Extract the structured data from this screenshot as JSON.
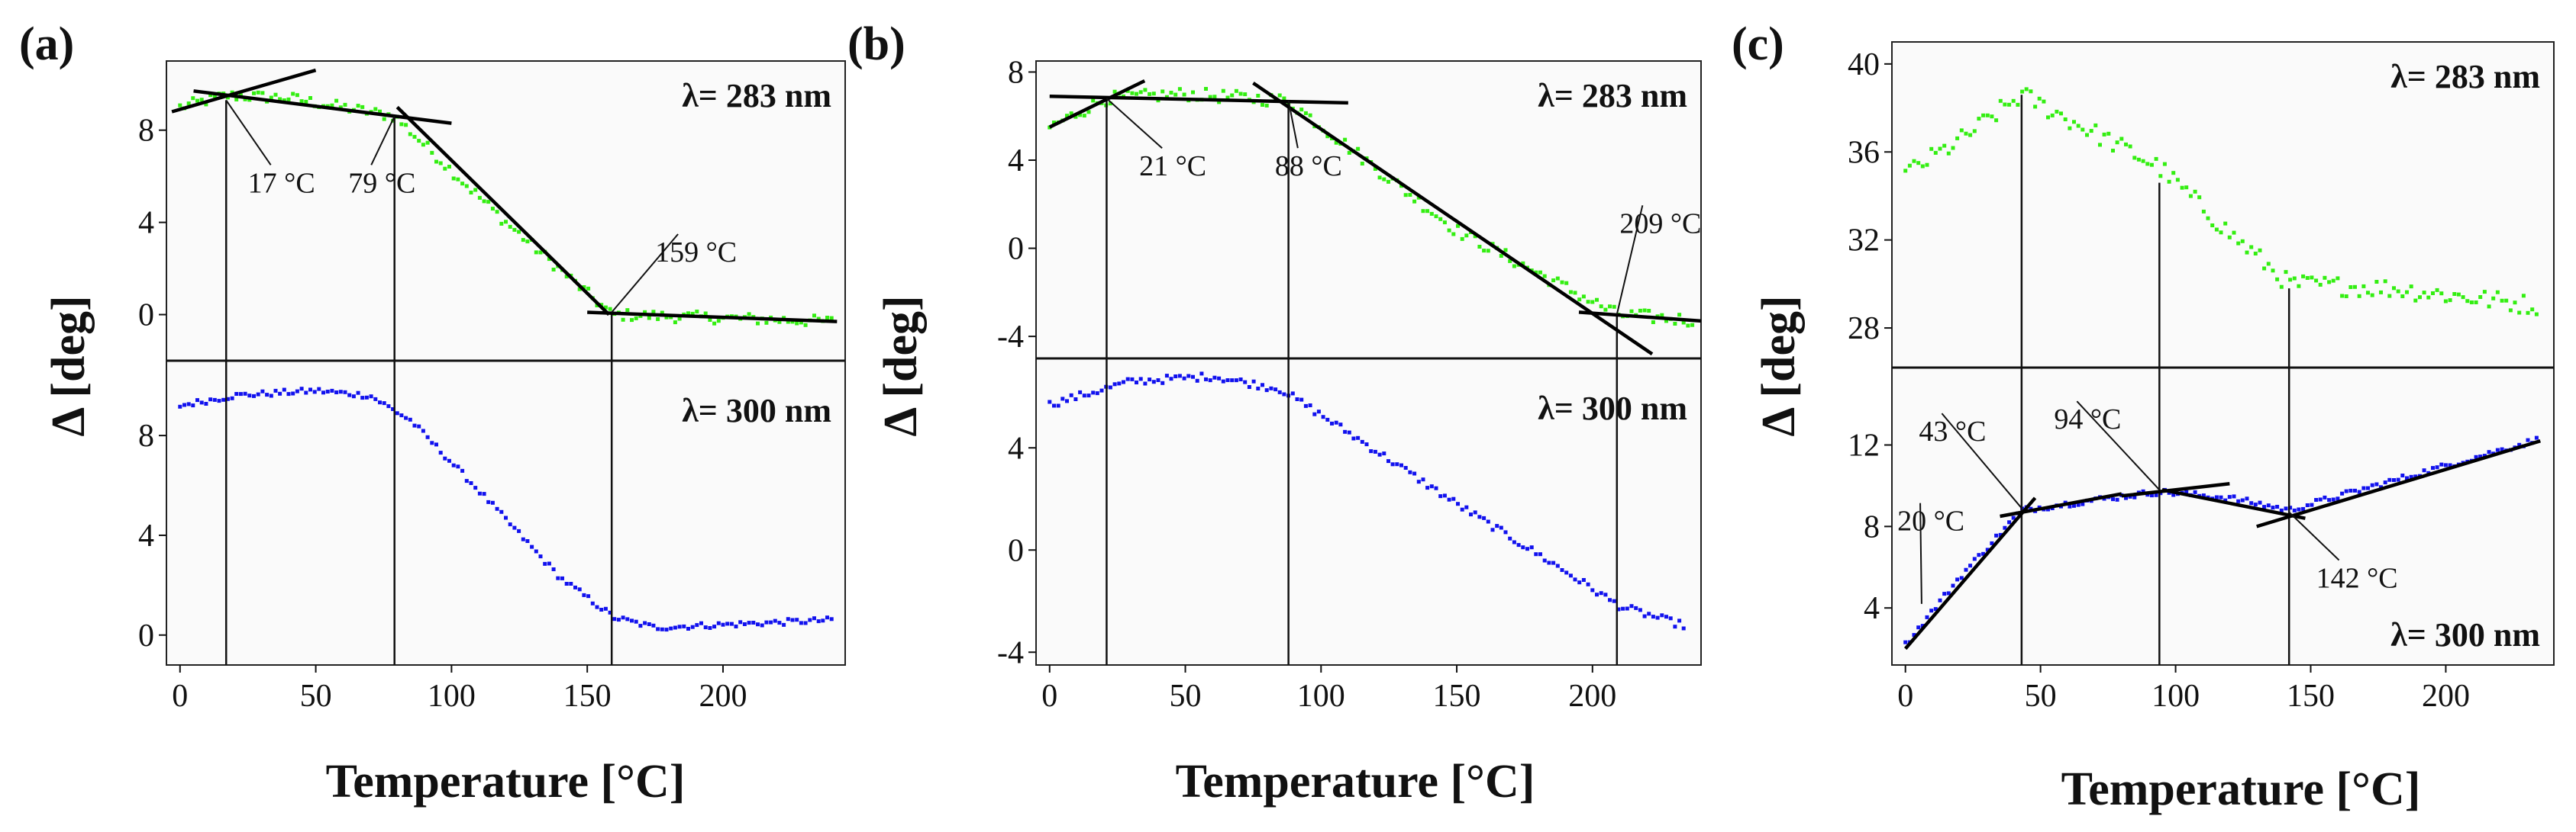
{
  "figure": {
    "panel_labels": [
      "(a)",
      "(b)",
      "(c)"
    ],
    "xlabel": "Temperature [°C]",
    "ylabel": "Δ [deg]",
    "colors": {
      "top": "#33ee11",
      "bottom": "#1111ee",
      "line": "#000000"
    }
  },
  "chart_data": [
    {
      "type": "scatter",
      "panel": "(a)",
      "xlabel": "Temperature [°C]",
      "ylabel": "Δ [deg]",
      "xlim": [
        -5,
        245
      ],
      "xticks": [
        0,
        50,
        100,
        150,
        200
      ],
      "top": {
        "wavelength_label": "λ= 283 nm",
        "ylim": [
          -2,
          11
        ],
        "yticks": [
          0,
          4,
          8
        ],
        "series_color": "green",
        "keypoints": [
          [
            0,
            9.0
          ],
          [
            17,
            9.5
          ],
          [
            40,
            9.4
          ],
          [
            79,
            8.6
          ],
          [
            120,
            4.0
          ],
          [
            159,
            0.0
          ],
          [
            240,
            -0.3
          ]
        ],
        "noise": 0.25,
        "fit_lines": [
          [
            [
              -3,
              8.8
            ],
            [
              50,
              10.6
            ]
          ],
          [
            [
              5,
              9.7
            ],
            [
              100,
              8.3
            ]
          ],
          [
            [
              80,
              9.0
            ],
            [
              158,
              0.0
            ]
          ],
          [
            [
              150,
              0.1
            ],
            [
              242,
              -0.3
            ]
          ]
        ],
        "annotations": [
          {
            "text": "17 °C",
            "tx": 17,
            "ty": 9.3,
            "lx": 25,
            "ly": 5.3
          },
          {
            "text": "79 °C",
            "tx": 79,
            "ty": 8.6,
            "lx": 62,
            "ly": 5.3
          },
          {
            "text": "159 °C",
            "tx": 159,
            "ty": 0.1,
            "lx": 175,
            "ly": 2.3
          }
        ]
      },
      "bottom": {
        "wavelength_label": "λ= 300 nm",
        "ylim": [
          -1.2,
          11
        ],
        "yticks": [
          0,
          4,
          8
        ],
        "series_color": "blue",
        "keypoints": [
          [
            0,
            9.2
          ],
          [
            20,
            9.6
          ],
          [
            50,
            9.8
          ],
          [
            70,
            9.6
          ],
          [
            85,
            8.6
          ],
          [
            110,
            5.8
          ],
          [
            140,
            2.3
          ],
          [
            160,
            0.7
          ],
          [
            175,
            0.3
          ],
          [
            240,
            0.6
          ]
        ],
        "noise": 0.12
      },
      "transition_temps": [
        17,
        79,
        159
      ]
    },
    {
      "type": "scatter",
      "panel": "(b)",
      "xlabel": "Temperature [°C]",
      "ylabel": "Δ [deg]",
      "xlim": [
        -5,
        240
      ],
      "xticks": [
        0,
        50,
        100,
        150,
        200
      ],
      "top": {
        "wavelength_label": "λ= 283 nm",
        "ylim": [
          -5,
          8.5
        ],
        "yticks": [
          -4,
          0,
          4,
          8
        ],
        "series_color": "green",
        "keypoints": [
          [
            0,
            5.5
          ],
          [
            21,
            6.8
          ],
          [
            50,
            7.0
          ],
          [
            88,
            6.7
          ],
          [
            150,
            0.8
          ],
          [
            209,
            -3.0
          ],
          [
            240,
            -3.3
          ]
        ],
        "noise": 0.3,
        "fit_lines": [
          [
            [
              0,
              5.5
            ],
            [
              35,
              7.6
            ]
          ],
          [
            [
              0,
              6.9
            ],
            [
              110,
              6.6
            ]
          ],
          [
            [
              75,
              7.5
            ],
            [
              222,
              -4.8
            ]
          ],
          [
            [
              195,
              -2.9
            ],
            [
              240,
              -3.3
            ]
          ]
        ],
        "annotations": [
          {
            "text": "21 °C",
            "tx": 21,
            "ty": 6.8,
            "lx": 33,
            "ly": 3.3
          },
          {
            "text": "88 °C",
            "tx": 88,
            "ty": 6.7,
            "lx": 83,
            "ly": 3.3
          },
          {
            "text": "209 °C",
            "tx": 209,
            "ty": -3.0,
            "lx": 210,
            "ly": 0.7
          }
        ]
      },
      "bottom": {
        "wavelength_label": "λ= 300 nm",
        "ylim": [
          -4.5,
          7.5
        ],
        "yticks": [
          -4,
          0,
          4
        ],
        "series_color": "blue",
        "keypoints": [
          [
            0,
            5.7
          ],
          [
            30,
            6.6
          ],
          [
            60,
            6.8
          ],
          [
            85,
            6.3
          ],
          [
            110,
            4.6
          ],
          [
            150,
            1.8
          ],
          [
            185,
            -0.5
          ],
          [
            210,
            -2.2
          ],
          [
            235,
            -3.0
          ]
        ],
        "noise": 0.15
      },
      "transition_temps": [
        21,
        88,
        209
      ]
    },
    {
      "type": "scatter",
      "panel": "(c)",
      "xlabel": "Temperature [°C]",
      "ylabel": "Δ [deg]",
      "xlim": [
        -5,
        240
      ],
      "xticks": [
        0,
        50,
        100,
        150,
        200
      ],
      "top": {
        "wavelength_label": "λ= 283 nm",
        "ylim": [
          26.2,
          41
        ],
        "yticks": [
          28,
          32,
          36,
          40
        ],
        "series_color": "green",
        "keypoints": [
          [
            0,
            35.0
          ],
          [
            20,
            36.5
          ],
          [
            43,
            38.6
          ],
          [
            60,
            37.5
          ],
          [
            94,
            35.3
          ],
          [
            120,
            32.3
          ],
          [
            142,
            30.0
          ],
          [
            180,
            29.8
          ],
          [
            235,
            29.0
          ]
        ],
        "noise": 0.45,
        "fit_lines": [],
        "annotations": []
      },
      "bottom": {
        "wavelength_label": "λ= 300 nm",
        "ylim": [
          1.2,
          15.8
        ],
        "yticks": [
          4,
          8,
          12
        ],
        "series_color": "blue",
        "keypoints": [
          [
            0,
            2.2
          ],
          [
            20,
            5.5
          ],
          [
            43,
            8.8
          ],
          [
            70,
            9.3
          ],
          [
            94,
            9.7
          ],
          [
            120,
            9.4
          ],
          [
            142,
            8.8
          ],
          [
            190,
            10.6
          ],
          [
            235,
            12.3
          ]
        ],
        "noise": 0.15,
        "fit_lines": [
          [
            [
              0,
              2.0
            ],
            [
              48,
              9.4
            ]
          ],
          [
            [
              35,
              8.5
            ],
            [
              80,
              9.6
            ]
          ],
          [
            [
              80,
              9.5
            ],
            [
              120,
              10.1
            ]
          ],
          [
            [
              95,
              9.8
            ],
            [
              148,
              8.4
            ]
          ],
          [
            [
              130,
              8.0
            ],
            [
              235,
              12.2
            ]
          ]
        ],
        "annotations": [
          {
            "text": "20 °C",
            "tx": 6,
            "ty": 4.2,
            "lx": -3,
            "ly": 7.8
          },
          {
            "text": "43 °C",
            "tx": 43,
            "ty": 8.9,
            "lx": 5,
            "ly": 12.2
          },
          {
            "text": "94 °C",
            "tx": 94,
            "ty": 9.8,
            "lx": 55,
            "ly": 12.8
          },
          {
            "text": "142 °C",
            "tx": 142,
            "ty": 8.7,
            "lx": 152,
            "ly": 5.0
          }
        ]
      },
      "vlines": [
        {
          "x": 43,
          "top_to": 38.6
        },
        {
          "x": 94,
          "top_to": 34.6
        },
        {
          "x": 142,
          "top_to": 29.8
        }
      ],
      "transition_temps": [
        20,
        43,
        94,
        142
      ]
    }
  ]
}
